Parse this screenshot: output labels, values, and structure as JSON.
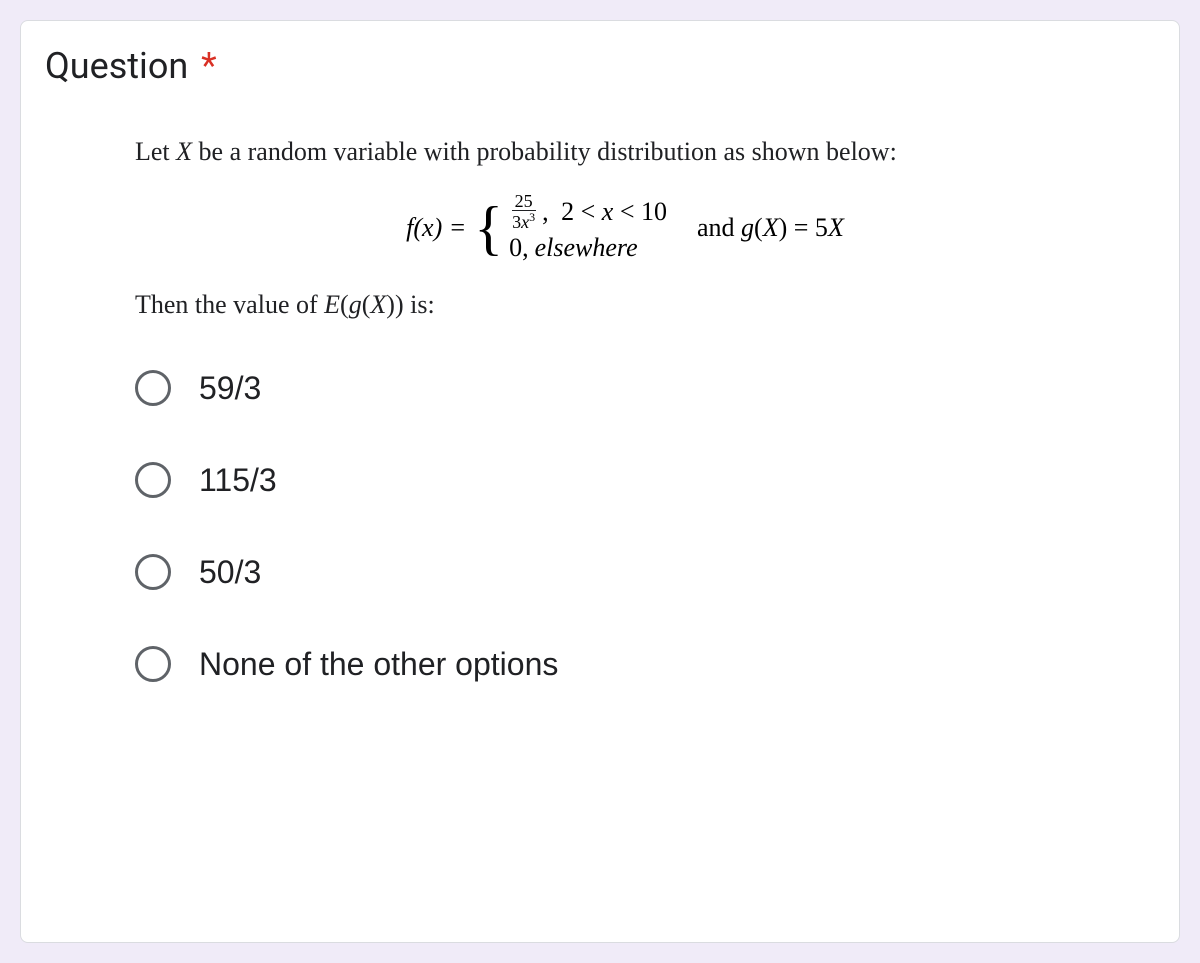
{
  "question": {
    "title": "Question",
    "required_marker": "*",
    "problem_intro": "Let X be a random variable with probability distribution as shown below:",
    "formula": {
      "fx_prefix": "f",
      "fx_arg": "(x) = ",
      "numerator": "25",
      "denominator": "3x³",
      "case1_sep": ",",
      "case1_condition": "2 < x < 10",
      "case2_value": "0,",
      "case2_condition": "elsewhere",
      "and_text": "and ",
      "g_prefix": "g",
      "g_arg": "(X) = 5X"
    },
    "then_text_prefix": "Then the value of ",
    "then_text_expr_E": "E",
    "then_text_expr_paren": "(",
    "then_text_expr_g": "g",
    "then_text_expr_arg": "(X)",
    "then_text_expr_close": ")",
    "then_text_suffix": " is:",
    "options": [
      "59/3",
      "115/3",
      "50/3",
      "None of the other options"
    ]
  },
  "colors": {
    "background": "#f0ebf8",
    "card_background": "#ffffff",
    "border": "#dadce0",
    "text": "#202124",
    "required": "#d93025",
    "radio_border": "#5f6368"
  }
}
